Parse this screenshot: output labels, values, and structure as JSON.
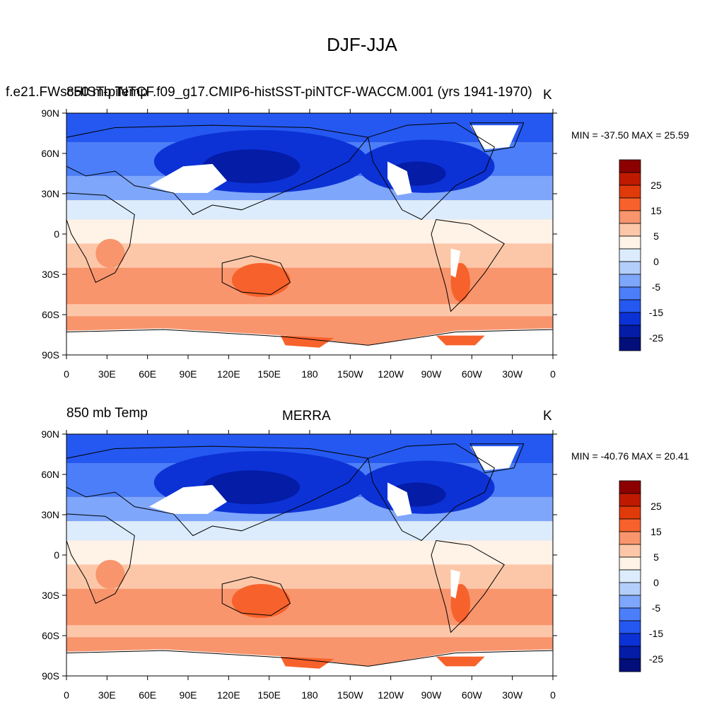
{
  "title": "DJF-JJA",
  "panels": [
    {
      "left_string": "850 mb Temp",
      "center_string": "f.e21.FWscHIST-piNTCF.f09_g17.CMIP6-histSST-piNTCF-WACCM.001 (yrs 1941-1970)",
      "right_string": "K",
      "min_max": "MIN = -37.50 MAX =  25.59",
      "min": -37.5,
      "max": 25.59
    },
    {
      "left_string": "850 mb Temp",
      "center_string": "MERRA",
      "right_string": "K",
      "min_max": "MIN = -40.76 MAX =  20.41",
      "min": -40.76,
      "max": 20.41
    }
  ],
  "lat_labels": [
    "90N",
    "60N",
    "30N",
    "0",
    "30S",
    "60S",
    "90S"
  ],
  "lon_labels": [
    "0",
    "30E",
    "60E",
    "90E",
    "120E",
    "150E",
    "180",
    "150W",
    "120W",
    "90W",
    "60W",
    "30W",
    "0"
  ],
  "colorbar_labels": [
    "25",
    "15",
    "5",
    "0",
    "-5",
    "-15",
    "-25"
  ],
  "colorbar_colors": [
    "#8c0000",
    "#bf1a00",
    "#e03a0a",
    "#f7622c",
    "#f8956d",
    "#fcc7a8",
    "#fff2e6",
    "#dcecfc",
    "#b4cefc",
    "#7ea6fb",
    "#4b7ef8",
    "#2558f0",
    "#0c32d6",
    "#041ca6",
    "#020f7a"
  ]
}
